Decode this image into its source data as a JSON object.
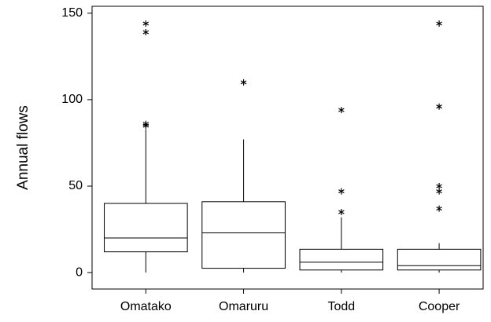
{
  "chart_data": {
    "type": "box",
    "y_label": "Annual flows",
    "color": "#000000",
    "categories": [
      "Omatako",
      "Omaruru",
      "Todd",
      "Cooper"
    ],
    "boxes": [
      {
        "whisker_low": 0,
        "q1": 12,
        "median": 20,
        "q3": 40,
        "whisker_high": 83,
        "outliers": [
          144,
          139,
          86,
          85
        ]
      },
      {
        "whisker_low": 0,
        "q1": 2.5,
        "median": 23,
        "q3": 41,
        "whisker_high": 77,
        "outliers": [
          110
        ]
      },
      {
        "whisker_low": 0,
        "q1": 1.5,
        "median": 6,
        "q3": 13.5,
        "whisker_high": 32,
        "outliers": [
          94,
          47,
          35
        ]
      },
      {
        "whisker_low": 0,
        "q1": 1.5,
        "median": 4,
        "q3": 13.5,
        "whisker_high": 17,
        "outliers": [
          144,
          96,
          50,
          47,
          37
        ]
      }
    ],
    "ylim": [
      -9.5,
      154
    ],
    "yticks": [
      0,
      50,
      100,
      150
    ]
  }
}
